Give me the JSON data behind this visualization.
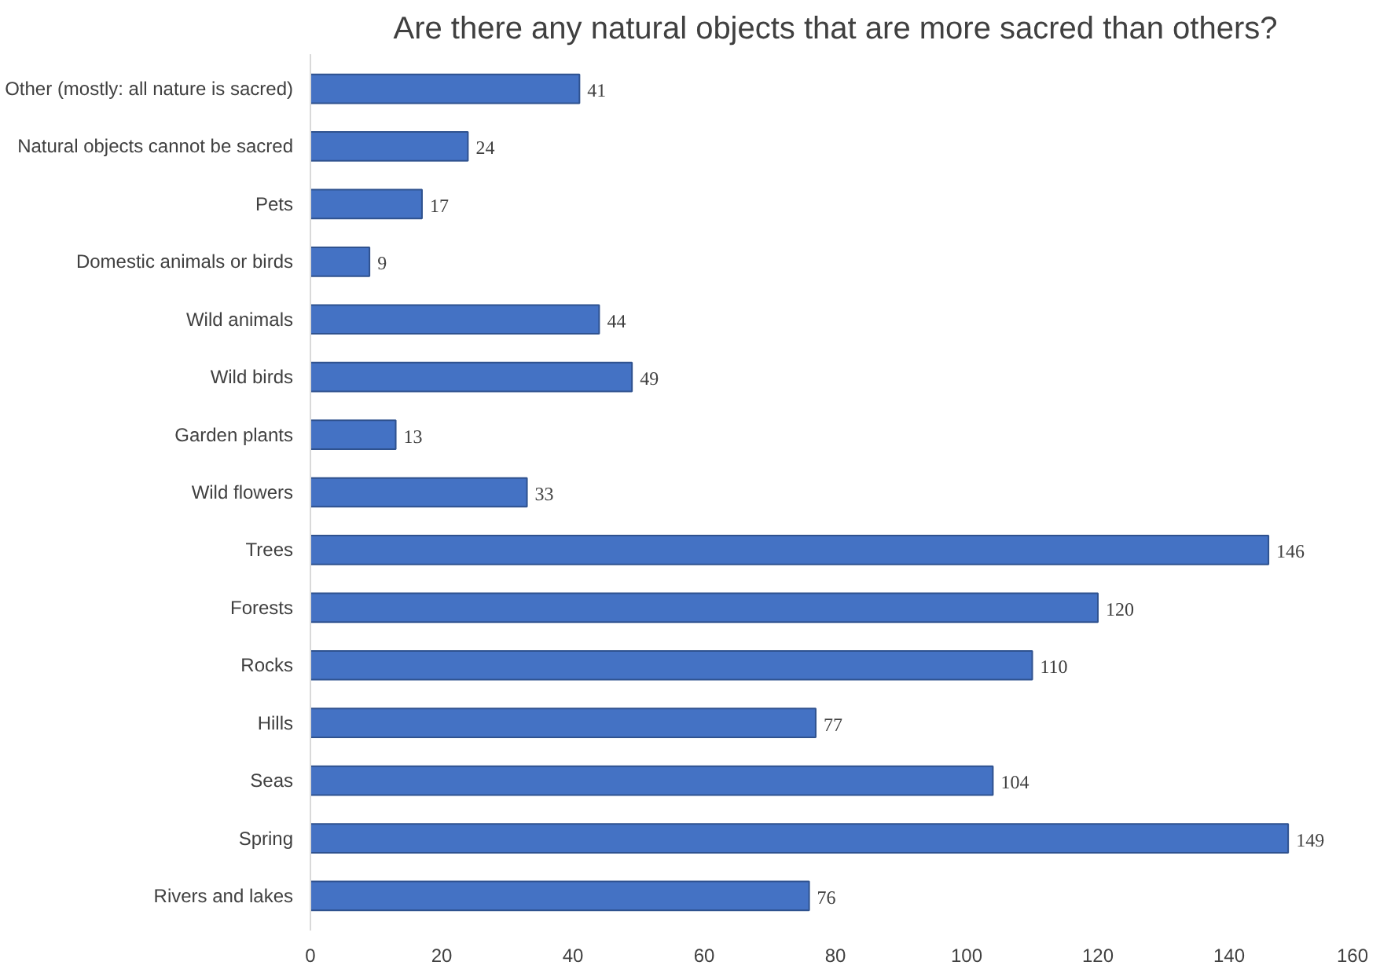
{
  "chart_data": {
    "type": "bar",
    "orientation": "horizontal",
    "title": "Are there any natural objects that are more sacred than others?",
    "categories": [
      "Other (mostly: all nature is sacred)",
      "Natural objects cannot be sacred",
      "Pets",
      "Domestic animals or birds",
      "Wild animals",
      "Wild birds",
      "Garden plants",
      "Wild flowers",
      "Trees",
      "Forests",
      "Rocks",
      "Hills",
      "Seas",
      "Spring",
      "Rivers and lakes"
    ],
    "values": [
      41,
      24,
      17,
      9,
      44,
      49,
      13,
      33,
      146,
      120,
      110,
      77,
      104,
      149,
      76
    ],
    "color": "#4472c4",
    "xlim": [
      0,
      160
    ],
    "xticks": [
      0,
      20,
      40,
      60,
      80,
      100,
      120,
      140,
      160
    ],
    "grid": false,
    "data_labels": true
  }
}
